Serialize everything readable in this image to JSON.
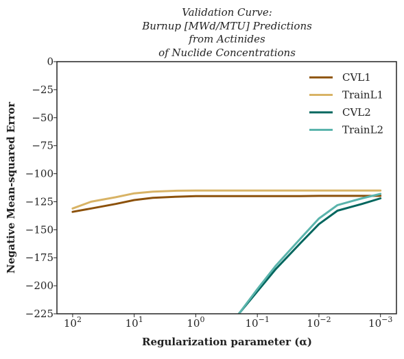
{
  "chart_data": {
    "type": "line",
    "title_lines": [
      "Validation Curve:",
      "Burnup [MWd/MTU] Predictions",
      "from Actinides",
      "of Nuclide Concentrations"
    ],
    "xlabel": "Regularization parameter (α)",
    "ylabel": "Negative Mean-squared Error",
    "x_scale": "log",
    "x_reversed": true,
    "xlim": [
      180,
      0.00055
    ],
    "ylim": [
      -225,
      0
    ],
    "x_ticks": [
      {
        "value": 100,
        "base": "10",
        "exp": "2"
      },
      {
        "value": 10,
        "base": "10",
        "exp": "1"
      },
      {
        "value": 1,
        "base": "10",
        "exp": "0"
      },
      {
        "value": 0.1,
        "base": "10",
        "exp": "−1"
      },
      {
        "value": 0.01,
        "base": "10",
        "exp": "−2"
      },
      {
        "value": 0.001,
        "base": "10",
        "exp": "−3"
      }
    ],
    "y_ticks": [
      {
        "value": 0,
        "label": "0"
      },
      {
        "value": -25,
        "label": "−25"
      },
      {
        "value": -50,
        "label": "−50"
      },
      {
        "value": -75,
        "label": "−75"
      },
      {
        "value": -100,
        "label": "−100"
      },
      {
        "value": -125,
        "label": "−125"
      },
      {
        "value": -150,
        "label": "−150"
      },
      {
        "value": -175,
        "label": "−175"
      },
      {
        "value": -200,
        "label": "−200"
      },
      {
        "value": -225,
        "label": "−225"
      }
    ],
    "grid": false,
    "legend_position": "top-right",
    "series": [
      {
        "name": "CVL1",
        "color": "#8c510a",
        "x": [
          100,
          50,
          20,
          10,
          5,
          2,
          1,
          0.5,
          0.2,
          0.1,
          0.05,
          0.02,
          0.01,
          0.005,
          0.002,
          0.001
        ],
        "y": [
          -134,
          -131,
          -127,
          -123.5,
          -121.5,
          -120.5,
          -120,
          -120,
          -120,
          -120,
          -120,
          -120,
          -119.8,
          -119.8,
          -119.8,
          -119.8
        ]
      },
      {
        "name": "TrainL1",
        "color": "#d8b365",
        "x": [
          100,
          50,
          20,
          10,
          5,
          2,
          1,
          0.5,
          0.2,
          0.1,
          0.05,
          0.02,
          0.01,
          0.005,
          0.002,
          0.001
        ],
        "y": [
          -131,
          -125,
          -121,
          -117.5,
          -116,
          -115.2,
          -115,
          -115,
          -115,
          -115,
          -115,
          -115,
          -115,
          -115,
          -115,
          -115
        ]
      },
      {
        "name": "CVL2",
        "color": "#01665e",
        "x": [
          0.2,
          0.1,
          0.05,
          0.02,
          0.01,
          0.005,
          0.002,
          0.001
        ],
        "y": [
          -225,
          -205,
          -185,
          -162,
          -145,
          -133,
          -127,
          -122
        ]
      },
      {
        "name": "TrainL2",
        "color": "#5ab4ac",
        "x": [
          0.2,
          0.1,
          0.05,
          0.02,
          0.01,
          0.005,
          0.002,
          0.001
        ],
        "y": [
          -225,
          -203,
          -182,
          -158,
          -140,
          -128,
          -122,
          -118
        ]
      }
    ]
  }
}
